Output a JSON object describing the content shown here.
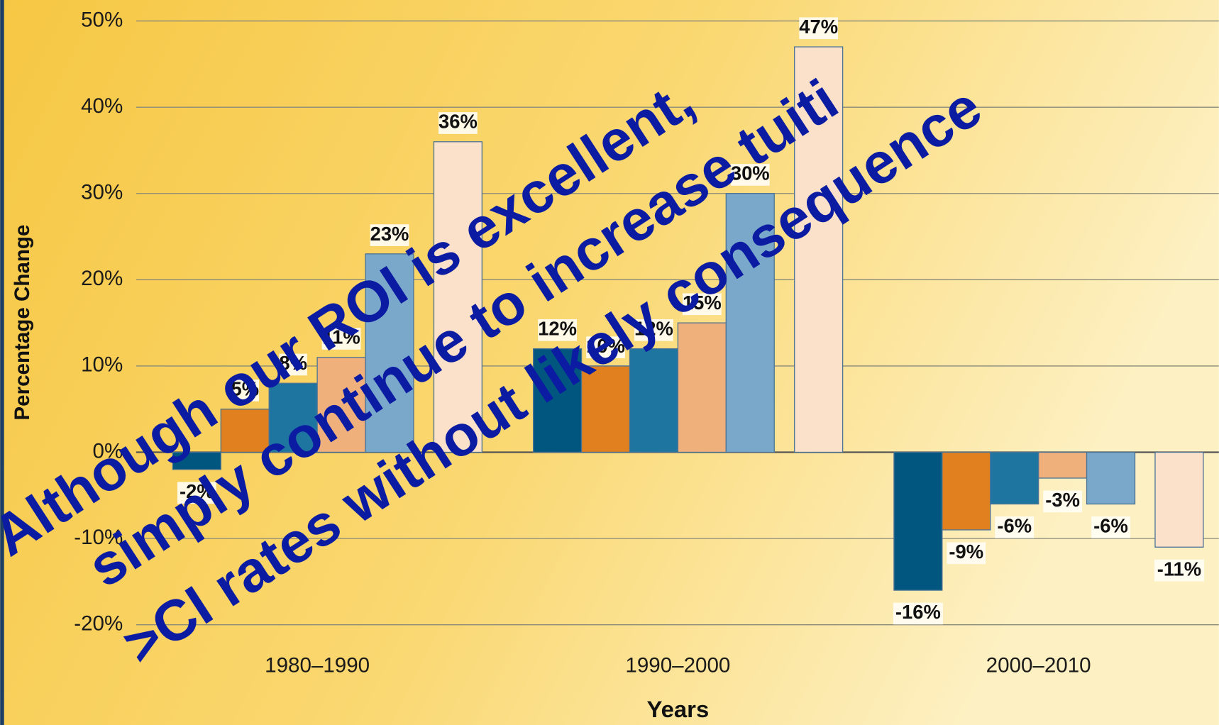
{
  "chart_data": {
    "type": "bar",
    "y_label": "Percentage Change",
    "x_label": "Years",
    "categories": [
      "1980–1990",
      "1990–2000",
      "2000–2010"
    ],
    "series": [
      {
        "color": "#00567f",
        "values": [
          -2,
          12,
          -16
        ],
        "value_labels": [
          "-2%",
          "12%",
          "-16%"
        ]
      },
      {
        "color": "#e0801f",
        "values": [
          5,
          10,
          -9
        ],
        "value_labels": [
          "5%",
          "10%",
          "-9%"
        ]
      },
      {
        "color": "#1e76a0",
        "values": [
          8,
          12,
          -6
        ],
        "value_labels": [
          "8%",
          "12%",
          "-6%"
        ]
      },
      {
        "color": "#f0b07c",
        "values": [
          11,
          15,
          -3
        ],
        "value_labels": [
          "11%",
          "15%",
          "-3%"
        ]
      },
      {
        "color": "#7aa8ca",
        "values": [
          23,
          30,
          -6
        ],
        "value_labels": [
          "23%",
          "30%",
          "-6%"
        ]
      },
      {
        "color": "#fbe1c9",
        "values": [
          36,
          47,
          -11
        ],
        "value_labels": [
          "36%",
          "47%",
          "-11%"
        ]
      }
    ],
    "ylim": [
      -20,
      50
    ],
    "yticks": [
      {
        "value": -20,
        "label": "-20%"
      },
      {
        "value": -10,
        "label": "-10%"
      },
      {
        "value": 0,
        "label": "0%"
      },
      {
        "value": 10,
        "label": "10%"
      },
      {
        "value": 20,
        "label": "20%"
      },
      {
        "value": 30,
        "label": "30%"
      },
      {
        "value": 40,
        "label": "40%"
      },
      {
        "value": 50,
        "label": "50%"
      }
    ],
    "grid": true,
    "annotations": [
      "Although our ROI is excellent,",
      "simply continue to increase tuiti",
      ">CI rates without likely consequence"
    ]
  }
}
